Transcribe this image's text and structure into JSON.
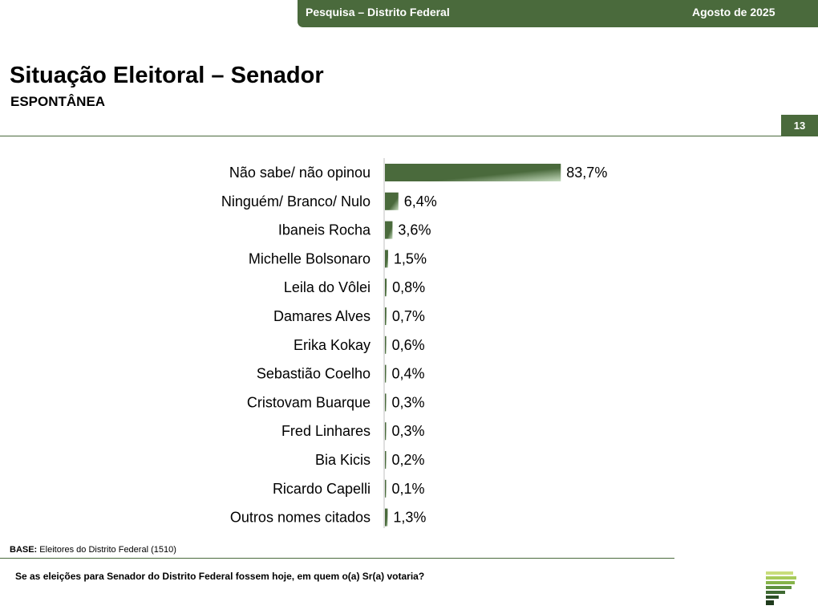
{
  "header": {
    "survey": "Pesquisa – Distrito Federal",
    "date": "Agosto de 2025"
  },
  "page": {
    "title": "Situação Eleitoral – Senador",
    "subtitle": "ESPONTÂNEA",
    "number": "13"
  },
  "footer": {
    "base_label": "BASE:",
    "base_text": "Eleitores do Distrito Federal (1510)",
    "question": "Se as eleições para Senador do Distrito Federal fossem hoje, em quem o(a) Sr(a) votaria?"
  },
  "colors": {
    "accent": "#4a6a3c",
    "bar": "#4a6a3c",
    "bar_highlight": "#c6dcbf"
  },
  "logo": {
    "icon": "stacked-bars-logo-icon"
  },
  "chart_data": {
    "type": "bar",
    "orientation": "horizontal",
    "categories": [
      "Não sabe/ não opinou",
      "Ninguém/ Branco/ Nulo",
      "Ibaneis Rocha",
      "Michelle Bolsonaro",
      "Leila do Vôlei",
      "Damares Alves",
      "Erika Kokay",
      "Sebastião Coelho",
      "Cristovam Buarque",
      "Fred Linhares",
      "Bia Kicis",
      "Ricardo Capelli",
      "Outros nomes citados"
    ],
    "values": [
      83.7,
      6.4,
      3.6,
      1.5,
      0.8,
      0.7,
      0.6,
      0.4,
      0.3,
      0.3,
      0.2,
      0.1,
      1.3
    ],
    "value_labels": [
      "83,7%",
      "6,4%",
      "3,6%",
      "1,5%",
      "0,8%",
      "0,7%",
      "0,6%",
      "0,4%",
      "0,3%",
      "0,3%",
      "0,2%",
      "0,1%",
      "1,3%"
    ],
    "xlim": [
      0,
      100
    ],
    "title": "",
    "xlabel": "",
    "ylabel": "",
    "grid": false,
    "legend": false
  }
}
